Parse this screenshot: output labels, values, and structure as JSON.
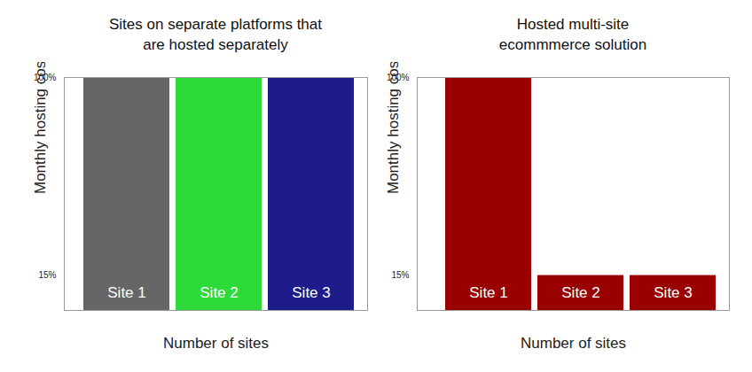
{
  "chart_data": [
    {
      "type": "bar",
      "title": "Sites on separate platforms that\nare hosted separately",
      "y_label": "Monthly hosting costs",
      "x_label": "Number of sites",
      "categories": [
        "Site 1",
        "Site 2",
        "Site 3"
      ],
      "values": [
        100,
        100,
        100
      ],
      "colors": [
        "#666666",
        "#2ed93a",
        "#1e1b8a"
      ],
      "ylim": [
        0,
        100
      ],
      "yticks": [
        {
          "value": 100,
          "label": "100%"
        },
        {
          "value": 15,
          "label": "15%"
        }
      ],
      "grid": false
    },
    {
      "type": "bar",
      "title": "Hosted multi-site\necommmerce solution",
      "y_label": "Monthly hosting costs",
      "x_label": "Number of sites",
      "categories": [
        "Site 1",
        "Site 2",
        "Site 3"
      ],
      "values": [
        100,
        15,
        15
      ],
      "color": "#9b0000",
      "ylim": [
        0,
        100
      ],
      "yticks": [
        {
          "value": 100,
          "label": "100%"
        },
        {
          "value": 15,
          "label": "15%"
        }
      ],
      "grid": false
    }
  ]
}
